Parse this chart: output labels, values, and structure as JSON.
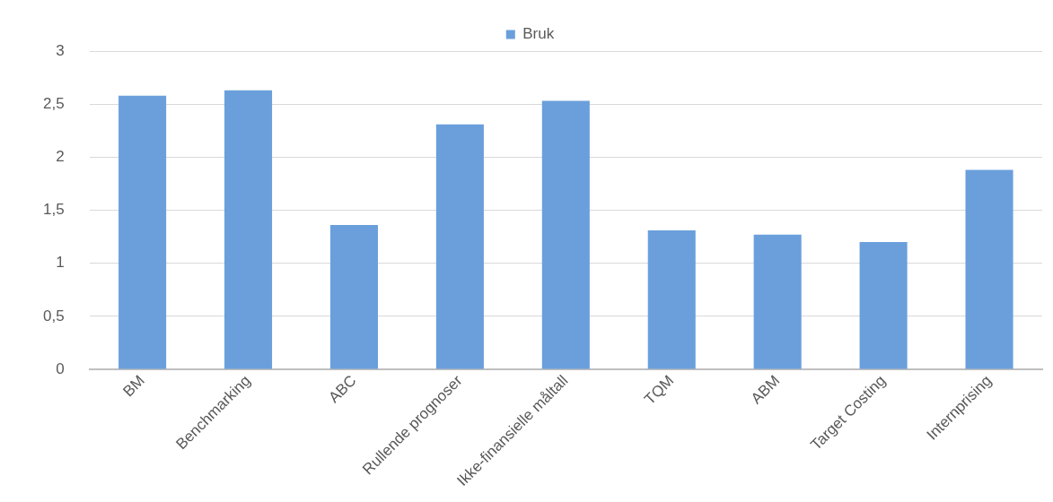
{
  "chart_data": {
    "type": "bar",
    "categories": [
      "BM",
      "Benchmarking",
      "ABC",
      "Rullende prognoser",
      "Ikke-finansielle måltall",
      "TQM",
      "ABM",
      "Target Costing",
      "Internprising"
    ],
    "series": [
      {
        "name": "Bruk",
        "color": "#6a9fdc",
        "values": [
          2.58,
          2.63,
          1.36,
          2.31,
          2.53,
          1.31,
          1.27,
          1.2,
          1.88
        ]
      }
    ],
    "ylim": [
      0,
      3
    ],
    "yticks": [
      0,
      {
        "value": 0.5,
        "label": "0,5"
      },
      1,
      {
        "value": 1.5,
        "label": "1,5"
      },
      2,
      {
        "value": 2.5,
        "label": "2,5"
      },
      3
    ],
    "grid": "y",
    "legend": "top"
  }
}
